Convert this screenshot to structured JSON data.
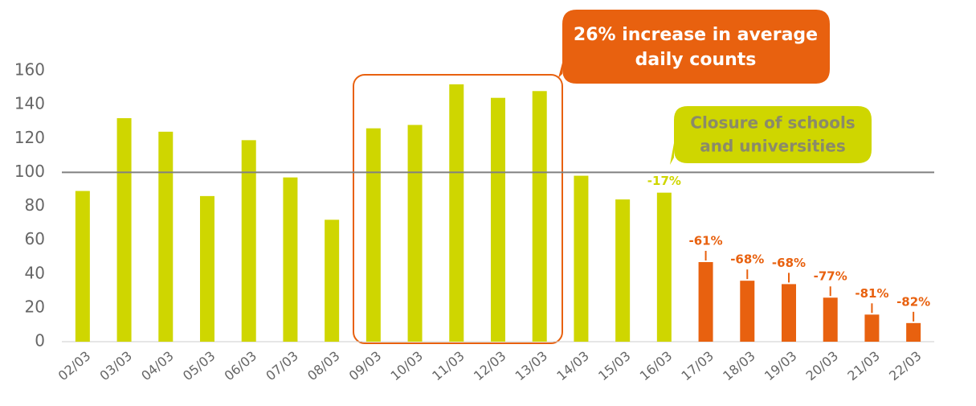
{
  "chart_data": {
    "type": "bar",
    "categories": [
      "02/03",
      "03/03",
      "04/03",
      "05/03",
      "06/03",
      "07/03",
      "08/03",
      "09/03",
      "10/03",
      "11/03",
      "12/03",
      "13/03",
      "14/03",
      "15/03",
      "16/03",
      "17/03",
      "18/03",
      "19/03",
      "20/03",
      "21/03",
      "22/03"
    ],
    "values": [
      89,
      132,
      124,
      86,
      119,
      97,
      72,
      126,
      128,
      152,
      144,
      148,
      98,
      84,
      88,
      47,
      36,
      34,
      26,
      16,
      11
    ],
    "colors": [
      "#cfd600",
      "#cfd600",
      "#cfd600",
      "#cfd600",
      "#cfd600",
      "#cfd600",
      "#cfd600",
      "#cfd600",
      "#cfd600",
      "#cfd600",
      "#cfd600",
      "#cfd600",
      "#cfd600",
      "#cfd600",
      "#cfd600",
      "#e8610f",
      "#e8610f",
      "#e8610f",
      "#e8610f",
      "#e8610f",
      "#e8610f"
    ],
    "ylim": [
      0,
      160
    ],
    "yticks": [
      0,
      20,
      40,
      60,
      80,
      100,
      120,
      140,
      160
    ],
    "grid": false,
    "reference_line": 100,
    "change_labels": [
      {
        "category": "16/03",
        "label": "-17%"
      },
      {
        "category": "17/03",
        "label": "-61%"
      },
      {
        "category": "18/03",
        "label": "-68%"
      },
      {
        "category": "19/03",
        "label": "-68%"
      },
      {
        "category": "20/03",
        "label": "-77%"
      },
      {
        "category": "21/03",
        "label": "-81%"
      },
      {
        "category": "22/03",
        "label": "-82%"
      }
    ],
    "callouts": [
      {
        "lines": [
          "26% increase in average",
          "daily counts"
        ]
      },
      {
        "lines": [
          "Closure of schools",
          "and universities"
        ]
      }
    ]
  }
}
